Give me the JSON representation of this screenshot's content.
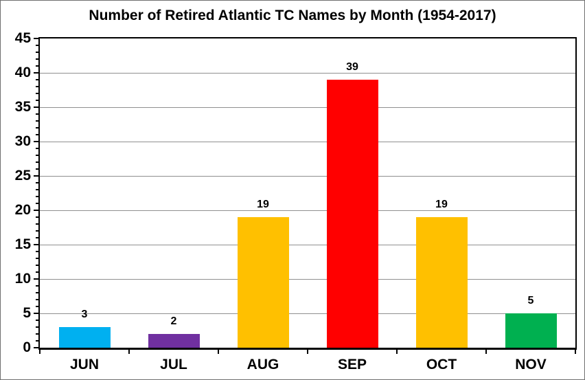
{
  "chart_data": {
    "type": "bar",
    "title": "Number of Retired Atlantic TC Names by Month (1954-2017)",
    "categories": [
      "JUN",
      "JUL",
      "AUG",
      "SEP",
      "OCT",
      "NOV"
    ],
    "values": [
      3,
      2,
      19,
      39,
      19,
      5
    ],
    "data_labels": [
      "3",
      "2",
      "19",
      "39",
      "19",
      "5"
    ],
    "bar_colors": [
      "#00B0F0",
      "#7030A0",
      "#FFC000",
      "#FF0000",
      "#FFC000",
      "#00B050"
    ],
    "xlabel": "",
    "ylabel": "",
    "ylim": [
      0,
      45
    ],
    "y_major_tick_step": 5,
    "y_minor_tick_step": 1,
    "y_major_ticks": [
      0,
      5,
      10,
      15,
      20,
      25,
      30,
      35,
      40,
      45
    ],
    "grid": "horizontal-major-gray",
    "gridline_color": "#8f8f8f",
    "axis_color": "#000000",
    "text_color": "#000000",
    "background_color": "#ffffff",
    "legend": "none"
  }
}
